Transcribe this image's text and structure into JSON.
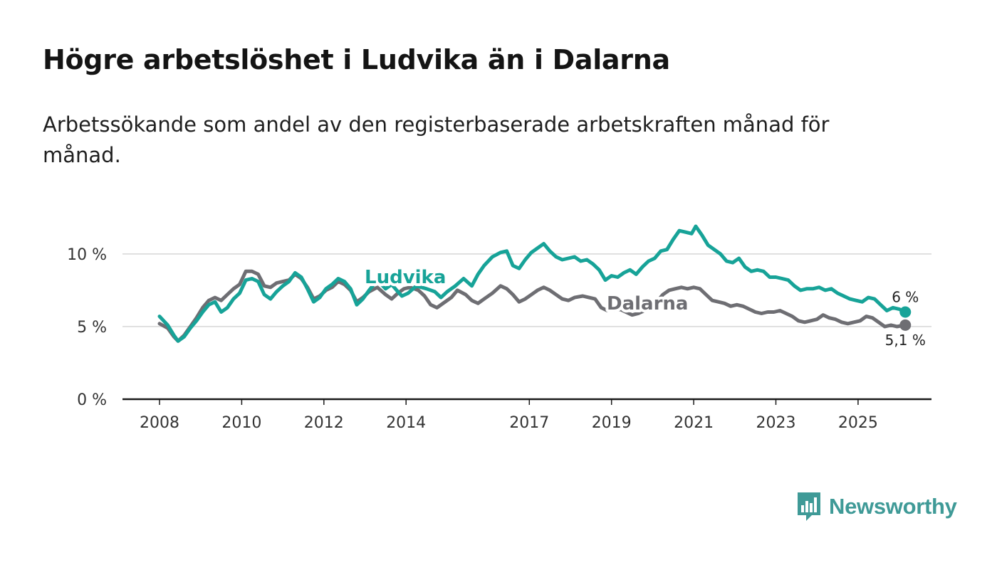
{
  "header": {
    "title": "Högre arbetslöshet i Ludvika än i Dalarna",
    "subtitle": "Arbetssökande som andel av den registerbaserade arbetskraften månad för månad."
  },
  "brand": {
    "name": "Newsworthy",
    "color": "#3f9a97"
  },
  "chart_data": {
    "type": "line",
    "title": "Högre arbetslöshet i Ludvika än i Dalarna",
    "subtitle": "Arbetssökande som andel av den registerbaserade arbetskraften månad för månad.",
    "xlabel": "",
    "ylabel": "",
    "ylim": [
      0,
      12
    ],
    "xlim": [
      2007.6,
      2026.9
    ],
    "y_ticks": [
      0,
      5,
      10
    ],
    "y_tick_labels": [
      "0 %",
      "5 %",
      "10 %"
    ],
    "x_ticks": [
      2008,
      2010,
      2012,
      2014,
      2017,
      2019,
      2021,
      2023,
      2025
    ],
    "x_tick_labels": [
      "2008",
      "2010",
      "2012",
      "2014",
      "2017",
      "2019",
      "2021",
      "2023",
      "2025"
    ],
    "grid": true,
    "series": [
      {
        "name": "Ludvika",
        "color": "#17a398",
        "end_label": "6 %",
        "points": [
          [
            2008.0,
            5.7
          ],
          [
            2008.2,
            5.1
          ],
          [
            2008.35,
            4.4
          ],
          [
            2008.45,
            4.0
          ],
          [
            2008.6,
            4.3
          ],
          [
            2008.75,
            4.9
          ],
          [
            2008.9,
            5.4
          ],
          [
            2009.05,
            6.0
          ],
          [
            2009.2,
            6.5
          ],
          [
            2009.35,
            6.7
          ],
          [
            2009.5,
            6.0
          ],
          [
            2009.65,
            6.3
          ],
          [
            2009.8,
            6.9
          ],
          [
            2009.95,
            7.3
          ],
          [
            2010.1,
            8.2
          ],
          [
            2010.25,
            8.3
          ],
          [
            2010.4,
            8.1
          ],
          [
            2010.55,
            7.2
          ],
          [
            2010.7,
            6.9
          ],
          [
            2010.85,
            7.4
          ],
          [
            2011.0,
            7.8
          ],
          [
            2011.15,
            8.1
          ],
          [
            2011.3,
            8.7
          ],
          [
            2011.45,
            8.4
          ],
          [
            2011.6,
            7.6
          ],
          [
            2011.75,
            6.7
          ],
          [
            2011.9,
            7.0
          ],
          [
            2012.05,
            7.6
          ],
          [
            2012.2,
            7.9
          ],
          [
            2012.35,
            8.3
          ],
          [
            2012.5,
            8.1
          ],
          [
            2012.65,
            7.6
          ],
          [
            2012.8,
            6.5
          ],
          [
            2012.95,
            6.9
          ],
          [
            2013.1,
            7.5
          ],
          [
            2013.3,
            8.2
          ],
          [
            2013.5,
            7.6
          ],
          [
            2013.65,
            7.9
          ],
          [
            2013.8,
            7.4
          ],
          [
            2013.9,
            7.1
          ],
          [
            2014.05,
            7.3
          ],
          [
            2014.25,
            7.8
          ],
          [
            2014.5,
            7.6
          ],
          [
            2014.7,
            7.4
          ],
          [
            2014.85,
            7.0
          ],
          [
            2015.0,
            7.4
          ],
          [
            2015.2,
            7.8
          ],
          [
            2015.4,
            8.3
          ],
          [
            2015.6,
            7.8
          ],
          [
            2015.75,
            8.6
          ],
          [
            2015.9,
            9.2
          ],
          [
            2016.1,
            9.8
          ],
          [
            2016.3,
            10.1
          ],
          [
            2016.45,
            10.2
          ],
          [
            2016.6,
            9.2
          ],
          [
            2016.75,
            9.0
          ],
          [
            2016.9,
            9.6
          ],
          [
            2017.05,
            10.1
          ],
          [
            2017.2,
            10.4
          ],
          [
            2017.35,
            10.7
          ],
          [
            2017.5,
            10.2
          ],
          [
            2017.65,
            9.8
          ],
          [
            2017.8,
            9.6
          ],
          [
            2017.95,
            9.7
          ],
          [
            2018.1,
            9.8
          ],
          [
            2018.25,
            9.5
          ],
          [
            2018.4,
            9.6
          ],
          [
            2018.55,
            9.3
          ],
          [
            2018.7,
            8.9
          ],
          [
            2018.85,
            8.2
          ],
          [
            2019.0,
            8.5
          ],
          [
            2019.15,
            8.4
          ],
          [
            2019.3,
            8.7
          ],
          [
            2019.45,
            8.9
          ],
          [
            2019.6,
            8.6
          ],
          [
            2019.75,
            9.1
          ],
          [
            2019.9,
            9.5
          ],
          [
            2020.05,
            9.7
          ],
          [
            2020.2,
            10.2
          ],
          [
            2020.35,
            10.3
          ],
          [
            2020.5,
            11.0
          ],
          [
            2020.65,
            11.6
          ],
          [
            2020.8,
            11.5
          ],
          [
            2020.95,
            11.4
          ],
          [
            2021.05,
            11.9
          ],
          [
            2021.2,
            11.3
          ],
          [
            2021.35,
            10.6
          ],
          [
            2021.5,
            10.3
          ],
          [
            2021.65,
            10.0
          ],
          [
            2021.8,
            9.5
          ],
          [
            2021.95,
            9.4
          ],
          [
            2022.1,
            9.7
          ],
          [
            2022.25,
            9.1
          ],
          [
            2022.4,
            8.8
          ],
          [
            2022.55,
            8.9
          ],
          [
            2022.7,
            8.8
          ],
          [
            2022.85,
            8.4
          ],
          [
            2023.0,
            8.4
          ],
          [
            2023.15,
            8.3
          ],
          [
            2023.3,
            8.2
          ],
          [
            2023.45,
            7.8
          ],
          [
            2023.6,
            7.5
          ],
          [
            2023.75,
            7.6
          ],
          [
            2023.9,
            7.6
          ],
          [
            2024.05,
            7.7
          ],
          [
            2024.2,
            7.5
          ],
          [
            2024.35,
            7.6
          ],
          [
            2024.5,
            7.3
          ],
          [
            2024.65,
            7.1
          ],
          [
            2024.8,
            6.9
          ],
          [
            2024.95,
            6.8
          ],
          [
            2025.1,
            6.7
          ],
          [
            2025.25,
            7.0
          ],
          [
            2025.4,
            6.9
          ],
          [
            2025.55,
            6.5
          ],
          [
            2025.7,
            6.1
          ],
          [
            2025.85,
            6.3
          ],
          [
            2026.0,
            6.2
          ],
          [
            2026.15,
            6.0
          ]
        ]
      },
      {
        "name": "Dalarna",
        "color": "#6e6e73",
        "end_label": "5,1 %",
        "points": [
          [
            2008.0,
            5.2
          ],
          [
            2008.2,
            4.9
          ],
          [
            2008.35,
            4.3
          ],
          [
            2008.45,
            4.0
          ],
          [
            2008.6,
            4.4
          ],
          [
            2008.75,
            5.0
          ],
          [
            2008.9,
            5.6
          ],
          [
            2009.05,
            6.3
          ],
          [
            2009.2,
            6.8
          ],
          [
            2009.35,
            7.0
          ],
          [
            2009.5,
            6.8
          ],
          [
            2009.65,
            7.2
          ],
          [
            2009.8,
            7.6
          ],
          [
            2009.95,
            7.9
          ],
          [
            2010.1,
            8.8
          ],
          [
            2010.25,
            8.8
          ],
          [
            2010.4,
            8.6
          ],
          [
            2010.55,
            7.8
          ],
          [
            2010.7,
            7.7
          ],
          [
            2010.85,
            8.0
          ],
          [
            2011.0,
            8.1
          ],
          [
            2011.15,
            8.2
          ],
          [
            2011.3,
            8.6
          ],
          [
            2011.45,
            8.3
          ],
          [
            2011.6,
            7.7
          ],
          [
            2011.75,
            6.9
          ],
          [
            2011.9,
            7.1
          ],
          [
            2012.05,
            7.5
          ],
          [
            2012.2,
            7.7
          ],
          [
            2012.35,
            8.1
          ],
          [
            2012.5,
            7.9
          ],
          [
            2012.65,
            7.5
          ],
          [
            2012.8,
            6.7
          ],
          [
            2012.95,
            7.0
          ],
          [
            2013.1,
            7.4
          ],
          [
            2013.3,
            7.7
          ],
          [
            2013.5,
            7.2
          ],
          [
            2013.65,
            6.9
          ],
          [
            2013.8,
            7.3
          ],
          [
            2013.95,
            7.6
          ],
          [
            2014.1,
            7.7
          ],
          [
            2014.3,
            7.5
          ],
          [
            2014.45,
            7.1
          ],
          [
            2014.6,
            6.5
          ],
          [
            2014.75,
            6.3
          ],
          [
            2014.9,
            6.6
          ],
          [
            2015.1,
            7.0
          ],
          [
            2015.25,
            7.5
          ],
          [
            2015.45,
            7.2
          ],
          [
            2015.6,
            6.8
          ],
          [
            2015.75,
            6.6
          ],
          [
            2015.9,
            6.9
          ],
          [
            2016.1,
            7.3
          ],
          [
            2016.3,
            7.8
          ],
          [
            2016.45,
            7.6
          ],
          [
            2016.6,
            7.2
          ],
          [
            2016.75,
            6.7
          ],
          [
            2016.9,
            6.9
          ],
          [
            2017.05,
            7.2
          ],
          [
            2017.2,
            7.5
          ],
          [
            2017.35,
            7.7
          ],
          [
            2017.5,
            7.5
          ],
          [
            2017.65,
            7.2
          ],
          [
            2017.8,
            6.9
          ],
          [
            2017.95,
            6.8
          ],
          [
            2018.1,
            7.0
          ],
          [
            2018.3,
            7.1
          ],
          [
            2018.45,
            7.0
          ],
          [
            2018.6,
            6.9
          ],
          [
            2018.75,
            6.3
          ],
          [
            2018.9,
            6.1
          ],
          [
            2019.05,
            6.1
          ],
          [
            2019.2,
            6.2
          ],
          [
            2019.35,
            6.0
          ],
          [
            2019.5,
            5.8
          ],
          [
            2019.65,
            5.9
          ],
          [
            2019.8,
            6.1
          ],
          [
            2019.95,
            6.3
          ],
          [
            2020.1,
            6.7
          ],
          [
            2020.25,
            7.2
          ],
          [
            2020.4,
            7.5
          ],
          [
            2020.55,
            7.6
          ],
          [
            2020.7,
            7.7
          ],
          [
            2020.85,
            7.6
          ],
          [
            2021.0,
            7.7
          ],
          [
            2021.15,
            7.6
          ],
          [
            2021.3,
            7.2
          ],
          [
            2021.45,
            6.8
          ],
          [
            2021.6,
            6.7
          ],
          [
            2021.75,
            6.6
          ],
          [
            2021.9,
            6.4
          ],
          [
            2022.05,
            6.5
          ],
          [
            2022.2,
            6.4
          ],
          [
            2022.35,
            6.2
          ],
          [
            2022.5,
            6.0
          ],
          [
            2022.65,
            5.9
          ],
          [
            2022.8,
            6.0
          ],
          [
            2022.95,
            6.0
          ],
          [
            2023.1,
            6.1
          ],
          [
            2023.25,
            5.9
          ],
          [
            2023.4,
            5.7
          ],
          [
            2023.55,
            5.4
          ],
          [
            2023.7,
            5.3
          ],
          [
            2023.85,
            5.4
          ],
          [
            2024.0,
            5.5
          ],
          [
            2024.15,
            5.8
          ],
          [
            2024.3,
            5.6
          ],
          [
            2024.45,
            5.5
          ],
          [
            2024.6,
            5.3
          ],
          [
            2024.75,
            5.2
          ],
          [
            2024.9,
            5.3
          ],
          [
            2025.05,
            5.4
          ],
          [
            2025.2,
            5.7
          ],
          [
            2025.35,
            5.6
          ],
          [
            2025.5,
            5.3
          ],
          [
            2025.65,
            5.0
          ],
          [
            2025.8,
            5.1
          ],
          [
            2025.95,
            5.0
          ],
          [
            2026.15,
            5.1
          ]
        ]
      }
    ]
  }
}
